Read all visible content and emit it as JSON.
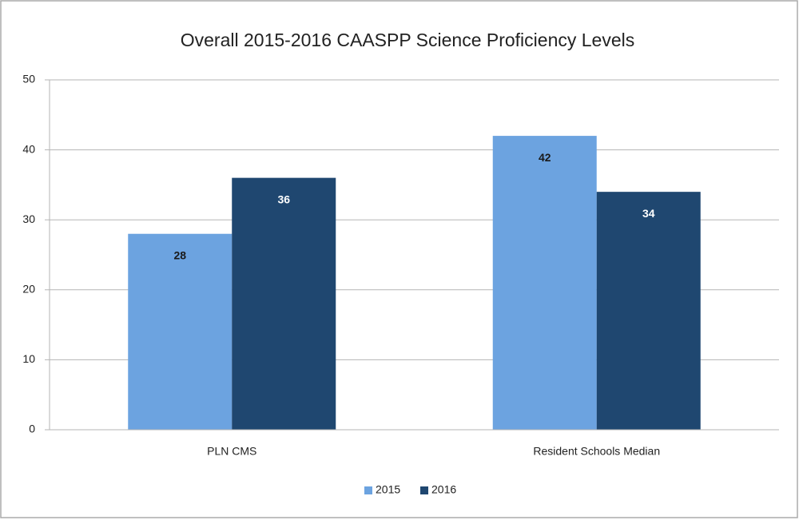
{
  "chart_data": {
    "type": "bar",
    "title": "Overall 2015-2016 CAASPP Science Proficiency Levels",
    "categories": [
      "PLN CMS",
      "Resident Schools Median"
    ],
    "series": [
      {
        "name": "2015",
        "color": "#6ca3e0",
        "values": [
          28,
          42
        ]
      },
      {
        "name": "2016",
        "color": "#1f4770",
        "values": [
          36,
          34
        ]
      }
    ],
    "ylim": [
      0,
      50
    ],
    "yticks": [
      0,
      10,
      20,
      30,
      40,
      50
    ],
    "grid": true,
    "legend": "bottom"
  }
}
